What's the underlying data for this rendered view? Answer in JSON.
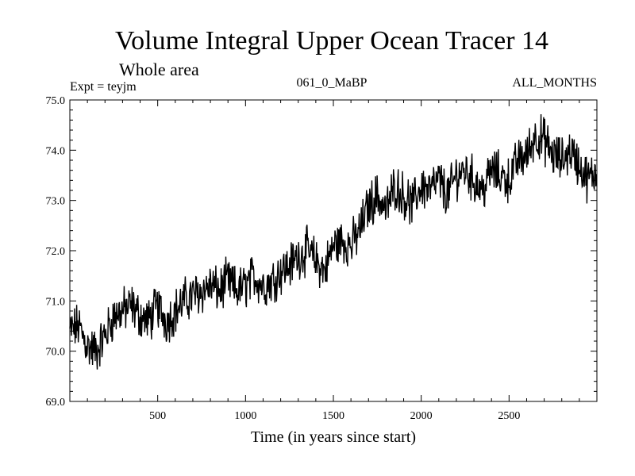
{
  "chart_data": {
    "type": "line",
    "title": "Volume Integral Upper Ocean Tracer 14",
    "subtitle": "Whole area",
    "expt_label": "Expt = teyjm",
    "run_label": "061_0_MaBP",
    "months_label": "ALL_MONTHS",
    "xlabel": "Time (in years since start)",
    "ylabel": "",
    "xlim": [
      0,
      3000
    ],
    "ylim": [
      69.0,
      75.0
    ],
    "x_ticks": [
      "500",
      "1000",
      "1500",
      "2000",
      "2500"
    ],
    "x_tick_values": [
      500,
      1000,
      1500,
      2000,
      2500
    ],
    "y_ticks": [
      "69.0",
      "70.0",
      "71.0",
      "72.0",
      "73.0",
      "74.0",
      "75.0"
    ],
    "y_tick_values": [
      69.0,
      70.0,
      71.0,
      72.0,
      73.0,
      74.0,
      75.0
    ],
    "line_color": "#000000",
    "series": [
      {
        "name": "tracer_14",
        "x": [
          0,
          50,
          100,
          150,
          200,
          250,
          300,
          350,
          400,
          450,
          500,
          550,
          600,
          650,
          700,
          750,
          800,
          850,
          900,
          950,
          1000,
          1050,
          1100,
          1150,
          1200,
          1250,
          1300,
          1350,
          1400,
          1450,
          1500,
          1550,
          1600,
          1650,
          1700,
          1750,
          1800,
          1850,
          1900,
          1950,
          2000,
          2050,
          2100,
          2150,
          2200,
          2250,
          2300,
          2350,
          2400,
          2450,
          2500,
          2550,
          2600,
          2650,
          2700,
          2750,
          2800,
          2850,
          2900,
          2950,
          3000
        ],
        "values": [
          70.4,
          70.5,
          70.1,
          70.0,
          70.3,
          70.7,
          70.8,
          70.9,
          70.7,
          70.6,
          70.9,
          70.6,
          70.8,
          71.0,
          71.1,
          71.2,
          71.3,
          71.2,
          71.4,
          71.2,
          71.3,
          71.5,
          71.3,
          71.4,
          71.6,
          71.7,
          71.9,
          72.0,
          71.8,
          71.6,
          72.1,
          72.2,
          72.1,
          72.4,
          72.9,
          73.1,
          72.8,
          73.3,
          73.1,
          72.9,
          73.3,
          73.2,
          73.4,
          73.1,
          73.5,
          73.6,
          73.4,
          73.2,
          73.6,
          73.5,
          73.4,
          73.8,
          73.9,
          74.3,
          74.2,
          73.9,
          73.8,
          74.0,
          73.7,
          73.4,
          73.6
        ]
      }
    ]
  }
}
